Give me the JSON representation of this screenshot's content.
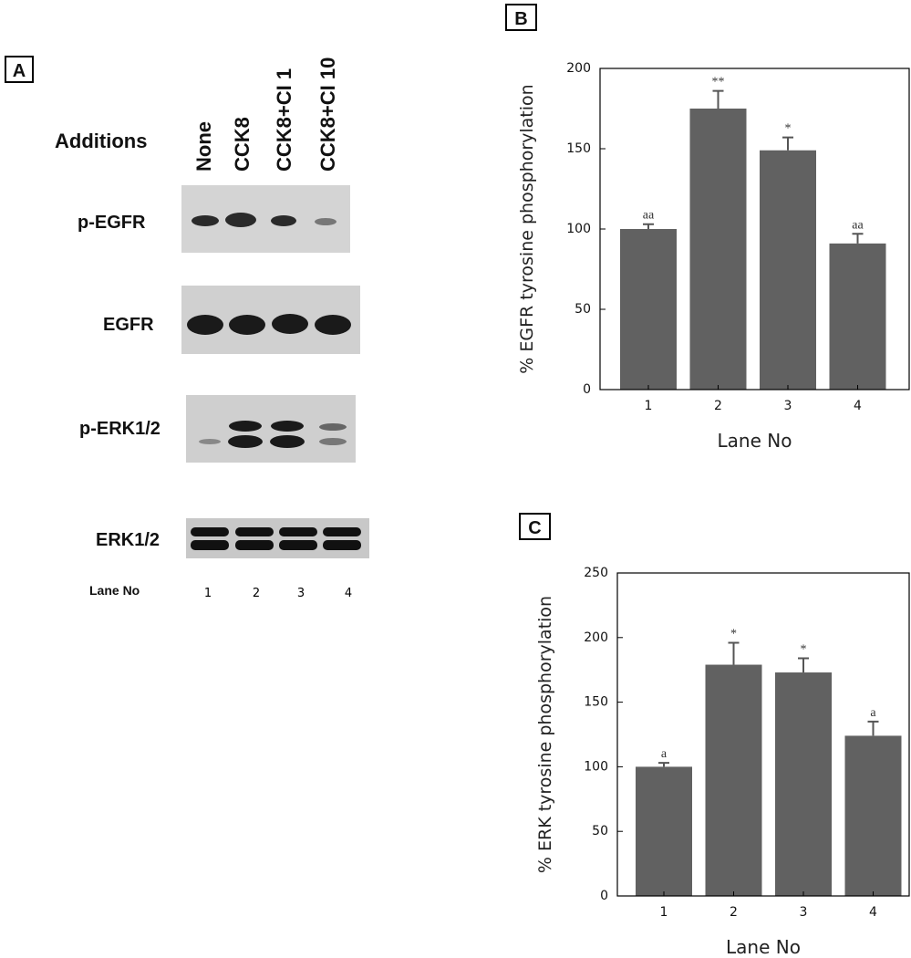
{
  "blot": {
    "panel_label": "A",
    "additions_label": "Additions",
    "treatments": [
      "None",
      "CCK8",
      "CCK8+CI 1",
      "CCK8+CI 10"
    ],
    "rows": [
      "p-EGFR",
      "EGFR",
      "p-ERK1/2",
      "ERK1/2"
    ],
    "lane_label": "Lane No",
    "lanes": [
      "1",
      "2",
      "3",
      "4"
    ]
  },
  "chart_data": [
    {
      "type": "bar",
      "panel_label": "B",
      "y_label": "% EGFR tyrosine phosphorylation",
      "x_label": "Lane No",
      "categories": [
        "1",
        "2",
        "3",
        "4"
      ],
      "values": [
        100,
        175,
        149,
        91
      ],
      "errors": [
        3,
        11,
        8,
        6
      ],
      "annotations": [
        "aa",
        "**",
        "*",
        "aa"
      ],
      "color": "#616161",
      "ylim": [
        0,
        200
      ],
      "yticks": [
        0,
        50,
        100,
        150,
        200
      ]
    },
    {
      "type": "bar",
      "panel_label": "C",
      "y_label": "% ERK tyrosine phosphorylation",
      "x_label": "Lane No",
      "categories": [
        "1",
        "2",
        "3",
        "4"
      ],
      "values": [
        100,
        179,
        173,
        124
      ],
      "errors": [
        3,
        17,
        11,
        11
      ],
      "annotations": [
        "a",
        "*",
        "*",
        "a"
      ],
      "color": "#616161",
      "ylim": [
        0,
        250
      ],
      "yticks": [
        0,
        50,
        100,
        150,
        200,
        250
      ]
    }
  ]
}
